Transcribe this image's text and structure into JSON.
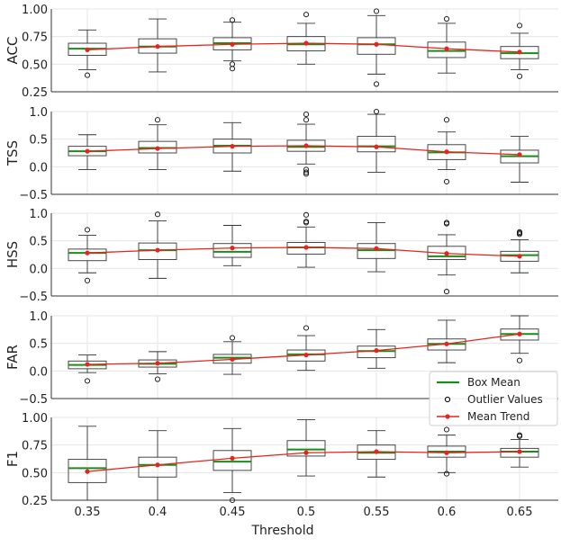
{
  "chart_data": {
    "type": "box",
    "xlabel": "Threshold",
    "categories": [
      "0.35",
      "0.4",
      "0.45",
      "0.5",
      "0.55",
      "0.6",
      "0.65"
    ],
    "legend": {
      "placement": "right, beside FAR panel",
      "entries": [
        {
          "key": "box_mean",
          "label": "Box Mean",
          "color": "#1a8c1a"
        },
        {
          "key": "outliers",
          "label": "Outlier Values",
          "color": "#000000"
        },
        {
          "key": "mean_trend",
          "label": "Mean Trend",
          "color": "#e8231b"
        }
      ]
    },
    "panels": [
      {
        "ylabel": "ACC",
        "ylim": [
          0.25,
          1.0
        ],
        "yticks": [
          0.25,
          0.5,
          0.75,
          1.0
        ],
        "yticklabels": [
          "0.25",
          "0.50",
          "0.75",
          "1.00"
        ],
        "boxes": [
          {
            "whislo": 0.45,
            "q1": 0.58,
            "med": 0.64,
            "q3": 0.69,
            "whishi": 0.81,
            "fliers": [
              0.4
            ]
          },
          {
            "whislo": 0.43,
            "q1": 0.6,
            "med": 0.66,
            "q3": 0.73,
            "whishi": 0.91,
            "fliers": []
          },
          {
            "whislo": 0.53,
            "q1": 0.63,
            "med": 0.69,
            "q3": 0.74,
            "whishi": 0.88,
            "fliers": [
              0.9,
              0.5,
              0.46
            ]
          },
          {
            "whislo": 0.5,
            "q1": 0.62,
            "med": 0.68,
            "q3": 0.75,
            "whishi": 0.87,
            "fliers": [
              0.95
            ]
          },
          {
            "whislo": 0.41,
            "q1": 0.59,
            "med": 0.68,
            "q3": 0.74,
            "whishi": 0.94,
            "fliers": [
              0.98,
              0.32
            ]
          },
          {
            "whislo": 0.42,
            "q1": 0.56,
            "med": 0.62,
            "q3": 0.7,
            "whishi": 0.87,
            "fliers": [
              0.91
            ]
          },
          {
            "whislo": 0.45,
            "q1": 0.55,
            "med": 0.6,
            "q3": 0.66,
            "whishi": 0.78,
            "fliers": [
              0.85,
              0.39
            ]
          }
        ],
        "trend": [
          0.63,
          0.66,
          0.68,
          0.69,
          0.68,
          0.64,
          0.61
        ]
      },
      {
        "ylabel": "TSS",
        "ylim": [
          -0.5,
          1.0
        ],
        "yticks": [
          -0.5,
          0.0,
          0.5,
          1.0
        ],
        "yticklabels": [
          "−0.5",
          "0.0",
          "0.5",
          "1.0"
        ],
        "boxes": [
          {
            "whislo": -0.05,
            "q1": 0.2,
            "med": 0.28,
            "q3": 0.37,
            "whishi": 0.58,
            "fliers": []
          },
          {
            "whislo": -0.05,
            "q1": 0.25,
            "med": 0.34,
            "q3": 0.46,
            "whishi": 0.76,
            "fliers": [
              0.85
            ]
          },
          {
            "whislo": -0.08,
            "q1": 0.25,
            "med": 0.38,
            "q3": 0.5,
            "whishi": 0.8,
            "fliers": []
          },
          {
            "whislo": 0.05,
            "q1": 0.28,
            "med": 0.36,
            "q3": 0.48,
            "whishi": 0.77,
            "fliers": [
              0.95,
              0.85,
              -0.05,
              -0.1,
              -0.13
            ]
          },
          {
            "whislo": -0.1,
            "q1": 0.27,
            "med": 0.37,
            "q3": 0.55,
            "whishi": 0.95,
            "fliers": [
              1.0
            ]
          },
          {
            "whislo": -0.05,
            "q1": 0.13,
            "med": 0.26,
            "q3": 0.4,
            "whishi": 0.63,
            "fliers": [
              0.85,
              -0.27
            ]
          },
          {
            "whislo": -0.28,
            "q1": 0.07,
            "med": 0.19,
            "q3": 0.3,
            "whishi": 0.55,
            "fliers": []
          }
        ],
        "trend": [
          0.28,
          0.33,
          0.37,
          0.38,
          0.36,
          0.27,
          0.22
        ]
      },
      {
        "ylabel": "HSS",
        "ylim": [
          -0.5,
          1.0
        ],
        "yticks": [
          -0.5,
          0.0,
          0.5,
          1.0
        ],
        "yticklabels": [
          "−0.5",
          "0.0",
          "0.5",
          "1.0"
        ],
        "boxes": [
          {
            "whislo": -0.08,
            "q1": 0.14,
            "med": 0.28,
            "q3": 0.35,
            "whishi": 0.6,
            "fliers": [
              0.7,
              -0.22
            ]
          },
          {
            "whislo": -0.18,
            "q1": 0.16,
            "med": 0.33,
            "q3": 0.46,
            "whishi": 0.86,
            "fliers": [
              0.98
            ]
          },
          {
            "whislo": 0.05,
            "q1": 0.2,
            "med": 0.3,
            "q3": 0.45,
            "whishi": 0.78,
            "fliers": []
          },
          {
            "whislo": 0.02,
            "q1": 0.26,
            "med": 0.38,
            "q3": 0.47,
            "whishi": 0.75,
            "fliers": [
              0.97,
              0.85,
              0.83
            ]
          },
          {
            "whislo": -0.06,
            "q1": 0.18,
            "med": 0.33,
            "q3": 0.45,
            "whishi": 0.83,
            "fliers": []
          },
          {
            "whislo": -0.12,
            "q1": 0.16,
            "med": 0.22,
            "q3": 0.4,
            "whishi": 0.61,
            "fliers": [
              0.83,
              0.81,
              -0.42
            ]
          },
          {
            "whislo": -0.08,
            "q1": 0.13,
            "med": 0.24,
            "q3": 0.31,
            "whishi": 0.52,
            "fliers": [
              0.66,
              0.64,
              0.62
            ]
          }
        ],
        "trend": [
          0.28,
          0.33,
          0.37,
          0.38,
          0.36,
          0.27,
          0.22
        ]
      },
      {
        "ylabel": "FAR",
        "ylim": [
          -0.5,
          1.0
        ],
        "yticks": [
          -0.5,
          0.0,
          0.5,
          1.0
        ],
        "yticklabels": [
          "−0.5",
          "0.0",
          "0.5",
          "1.0"
        ],
        "boxes": [
          {
            "whislo": -0.03,
            "q1": 0.04,
            "med": 0.11,
            "q3": 0.18,
            "whishi": 0.29,
            "fliers": [
              -0.18
            ]
          },
          {
            "whislo": -0.05,
            "q1": 0.07,
            "med": 0.13,
            "q3": 0.2,
            "whishi": 0.35,
            "fliers": [
              -0.15
            ]
          },
          {
            "whislo": -0.06,
            "q1": 0.14,
            "med": 0.24,
            "q3": 0.3,
            "whishi": 0.53,
            "fliers": [
              0.6
            ]
          },
          {
            "whislo": 0.01,
            "q1": 0.18,
            "med": 0.3,
            "q3": 0.38,
            "whishi": 0.64,
            "fliers": [
              0.78
            ]
          },
          {
            "whislo": 0.05,
            "q1": 0.24,
            "med": 0.36,
            "q3": 0.45,
            "whishi": 0.75,
            "fliers": []
          },
          {
            "whislo": 0.15,
            "q1": 0.38,
            "med": 0.49,
            "q3": 0.58,
            "whishi": 0.92,
            "fliers": []
          },
          {
            "whislo": 0.32,
            "q1": 0.56,
            "med": 0.67,
            "q3": 0.76,
            "whishi": 1.0,
            "fliers": [
              0.19
            ]
          }
        ],
        "trend": [
          0.12,
          0.14,
          0.21,
          0.29,
          0.37,
          0.49,
          0.67
        ]
      },
      {
        "ylabel": "F1",
        "ylim": [
          0.25,
          1.0
        ],
        "yticks": [
          0.25,
          0.5,
          0.75,
          1.0
        ],
        "yticklabels": [
          "0.25",
          "0.50",
          "0.75",
          "1.00"
        ],
        "boxes": [
          {
            "whislo": 0.25,
            "q1": 0.41,
            "med": 0.54,
            "q3": 0.62,
            "whishi": 0.92,
            "fliers": []
          },
          {
            "whislo": 0.25,
            "q1": 0.46,
            "med": 0.57,
            "q3": 0.64,
            "whishi": 0.88,
            "fliers": []
          },
          {
            "whislo": 0.32,
            "q1": 0.52,
            "med": 0.6,
            "q3": 0.7,
            "whishi": 0.9,
            "fliers": [
              0.25
            ]
          },
          {
            "whislo": 0.47,
            "q1": 0.65,
            "med": 0.71,
            "q3": 0.79,
            "whishi": 0.98,
            "fliers": []
          },
          {
            "whislo": 0.46,
            "q1": 0.62,
            "med": 0.68,
            "q3": 0.75,
            "whishi": 0.88,
            "fliers": []
          },
          {
            "whislo": 0.5,
            "q1": 0.64,
            "med": 0.69,
            "q3": 0.74,
            "whishi": 0.84,
            "fliers": [
              0.89,
              0.49
            ]
          },
          {
            "whislo": 0.55,
            "q1": 0.64,
            "med": 0.69,
            "q3": 0.72,
            "whishi": 0.8,
            "fliers": [
              0.84,
              0.83
            ]
          }
        ],
        "trend": [
          0.51,
          0.57,
          0.63,
          0.68,
          0.69,
          0.68,
          0.69
        ]
      }
    ]
  }
}
